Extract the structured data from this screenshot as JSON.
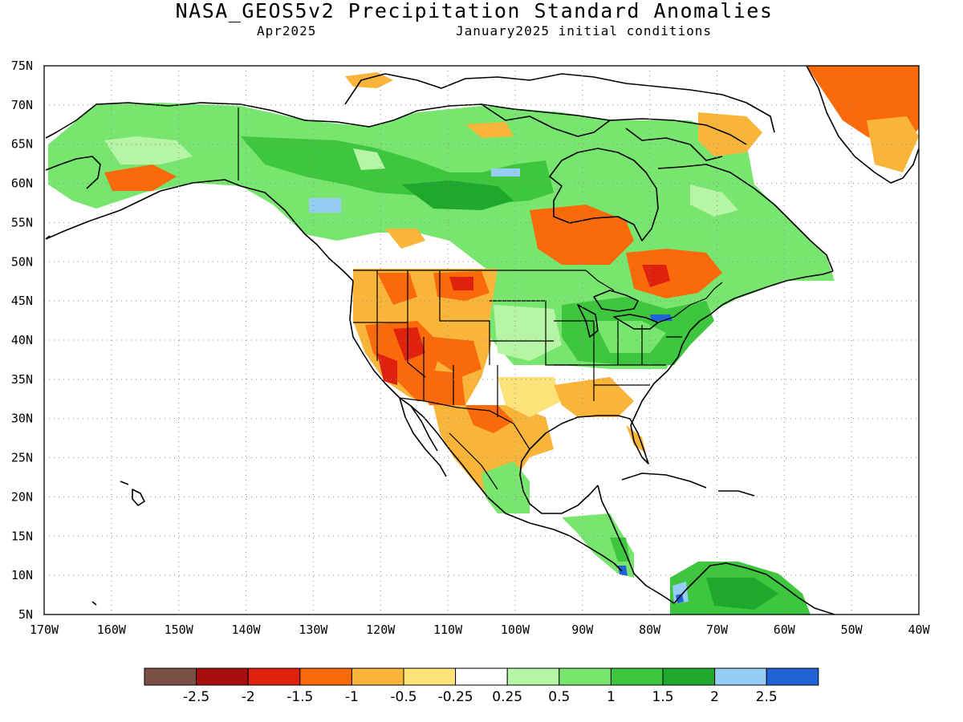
{
  "header": {
    "title": "NASA_GEOS5v2 Precipitation Standard Anomalies",
    "forecast_month": "Apr2025",
    "initial_conditions": "January2025 initial conditions"
  },
  "axes": {
    "lat_labels": [
      "75N",
      "70N",
      "65N",
      "60N",
      "55N",
      "50N",
      "45N",
      "40N",
      "35N",
      "30N",
      "25N",
      "20N",
      "15N",
      "10N",
      "5N"
    ],
    "lon_labels": [
      "170W",
      "160W",
      "150W",
      "140W",
      "130W",
      "120W",
      "110W",
      "100W",
      "90W",
      "80W",
      "70W",
      "60W",
      "50W",
      "40W"
    ]
  },
  "colorbar": {
    "colors": [
      "#7a5044",
      "#a50f0f",
      "#e0210e",
      "#fa6a0a",
      "#f8b53a",
      "#fde27a",
      "#ffffff",
      "#b6f5a6",
      "#78e66e",
      "#3ec63f",
      "#20a82c",
      "#96cdf5",
      "#1f63d4"
    ],
    "labels": [
      "-2.5",
      "-2",
      "-1.5",
      "-1",
      "-0.5",
      "-0.25",
      "0.25",
      "0.5",
      "1",
      "1.5",
      "2",
      "2.5"
    ]
  },
  "palette": {
    "dry_strong": "#e0210e",
    "dry": "#fa6a0a",
    "dry_weak": "#f8b53a",
    "dry_slight": "#fde27a",
    "wet_slight": "#b6f5a6",
    "wet": "#78e66e",
    "wet_strong": "#3ec63f",
    "wet_very": "#20a82c",
    "wet_extreme": "#96cdf5",
    "wet_max": "#1f63d4"
  }
}
